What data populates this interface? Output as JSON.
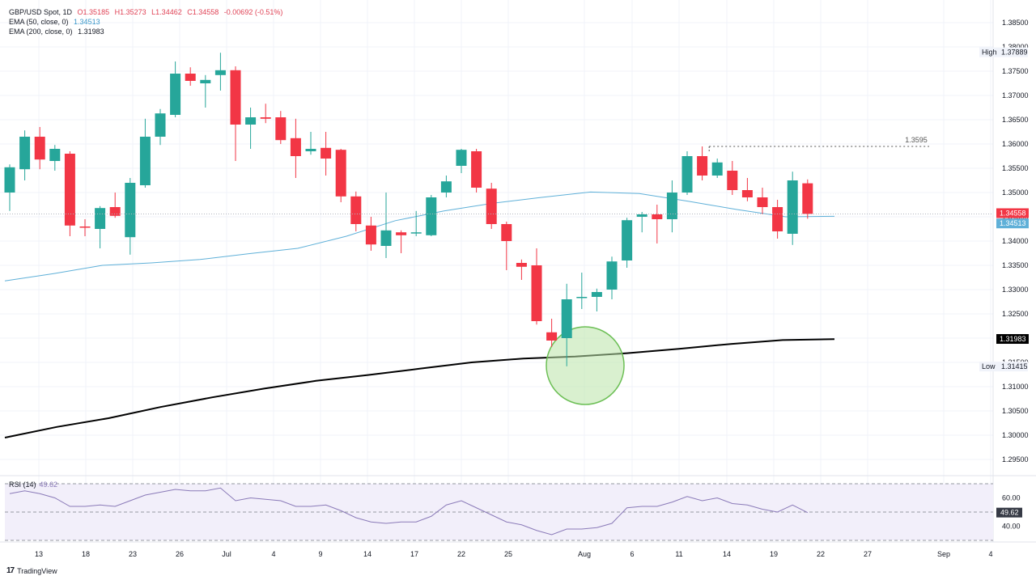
{
  "legend": {
    "symbol": "GBP/USD Spot, 1D",
    "open": "O1.35185",
    "high": "H1.35273",
    "low": "L1.34462",
    "close": "C1.34558",
    "change": "-0.00692 (-0.51%)",
    "ema50_label": "EMA (50, close, 0)",
    "ema50_value": "1.34513",
    "ema200_label": "EMA (200, close, 0)",
    "ema200_value": "1.31983"
  },
  "rsi": {
    "label": "RSI (14)",
    "value": "49.62",
    "levels": [
      "60.00",
      "40.00"
    ]
  },
  "footer": {
    "brand": "TradingView",
    "logo": "17"
  },
  "colors": {
    "up": "#26a69a",
    "down": "#f23645",
    "ema50": "#5fb0d8",
    "ema200": "#000000",
    "rsi_line": "#8a7ab8",
    "rsi_band": "#f2effa",
    "circle_fill": "#b9e3a8",
    "circle_stroke": "#6cbf55"
  },
  "chart_data": {
    "type": "candlestick",
    "title": "GBP/USD Spot, 1D",
    "price_ticks": [
      "1.38500",
      "1.38000",
      "1.37500",
      "1.37000",
      "1.36500",
      "1.36000",
      "1.35500",
      "1.35000",
      "1.34500",
      "1.34000",
      "1.33500",
      "1.33000",
      "1.32500",
      "1.32000",
      "1.31500",
      "1.31000",
      "1.30500",
      "1.30000",
      "1.29500"
    ],
    "date_ticks": [
      "13",
      "18",
      "23",
      "26",
      "Jul",
      "4",
      "9",
      "14",
      "17",
      "22",
      "25",
      "Aug",
      "6",
      "11",
      "14",
      "19",
      "22",
      "27",
      "Sep",
      "4"
    ],
    "ylim": [
      1.292,
      1.388
    ],
    "candles": [
      {
        "o": 1.35,
        "h": 1.3558,
        "l": 1.3462,
        "c": 1.3552
      },
      {
        "o": 1.3548,
        "h": 1.3628,
        "l": 1.3525,
        "c": 1.3615
      },
      {
        "o": 1.3615,
        "h": 1.3635,
        "l": 1.3548,
        "c": 1.3568
      },
      {
        "o": 1.3565,
        "h": 1.3598,
        "l": 1.3545,
        "c": 1.359
      },
      {
        "o": 1.358,
        "h": 1.3585,
        "l": 1.341,
        "c": 1.3432
      },
      {
        "o": 1.343,
        "h": 1.3445,
        "l": 1.341,
        "c": 1.3428
      },
      {
        "o": 1.3425,
        "h": 1.3472,
        "l": 1.3385,
        "c": 1.3468
      },
      {
        "o": 1.347,
        "h": 1.35,
        "l": 1.3448,
        "c": 1.3452
      },
      {
        "o": 1.3408,
        "h": 1.353,
        "l": 1.3372,
        "c": 1.352
      },
      {
        "o": 1.3515,
        "h": 1.3652,
        "l": 1.351,
        "c": 1.3615
      },
      {
        "o": 1.3615,
        "h": 1.3672,
        "l": 1.3598,
        "c": 1.3663
      },
      {
        "o": 1.366,
        "h": 1.377,
        "l": 1.3655,
        "c": 1.3745
      },
      {
        "o": 1.3745,
        "h": 1.3758,
        "l": 1.372,
        "c": 1.373
      },
      {
        "o": 1.3725,
        "h": 1.3742,
        "l": 1.3675,
        "c": 1.3732
      },
      {
        "o": 1.3742,
        "h": 1.3788,
        "l": 1.371,
        "c": 1.3752
      },
      {
        "o": 1.3752,
        "h": 1.376,
        "l": 1.3565,
        "c": 1.364
      },
      {
        "o": 1.364,
        "h": 1.3675,
        "l": 1.359,
        "c": 1.3655
      },
      {
        "o": 1.3655,
        "h": 1.3683,
        "l": 1.3643,
        "c": 1.3652
      },
      {
        "o": 1.3655,
        "h": 1.3668,
        "l": 1.36,
        "c": 1.3608
      },
      {
        "o": 1.3612,
        "h": 1.3652,
        "l": 1.353,
        "c": 1.3575
      },
      {
        "o": 1.3585,
        "h": 1.3625,
        "l": 1.3578,
        "c": 1.359
      },
      {
        "o": 1.3592,
        "h": 1.3625,
        "l": 1.3535,
        "c": 1.357
      },
      {
        "o": 1.3588,
        "h": 1.359,
        "l": 1.348,
        "c": 1.3492
      },
      {
        "o": 1.3492,
        "h": 1.3502,
        "l": 1.342,
        "c": 1.3435
      },
      {
        "o": 1.3432,
        "h": 1.345,
        "l": 1.338,
        "c": 1.3393
      },
      {
        "o": 1.339,
        "h": 1.35,
        "l": 1.3365,
        "c": 1.3422
      },
      {
        "o": 1.3418,
        "h": 1.3422,
        "l": 1.3375,
        "c": 1.3412
      },
      {
        "o": 1.3417,
        "h": 1.3462,
        "l": 1.341,
        "c": 1.3418
      },
      {
        "o": 1.3412,
        "h": 1.3495,
        "l": 1.341,
        "c": 1.349
      },
      {
        "o": 1.35,
        "h": 1.3535,
        "l": 1.349,
        "c": 1.3523
      },
      {
        "o": 1.3555,
        "h": 1.359,
        "l": 1.354,
        "c": 1.3588
      },
      {
        "o": 1.3585,
        "h": 1.359,
        "l": 1.35,
        "c": 1.351
      },
      {
        "o": 1.3508,
        "h": 1.352,
        "l": 1.3425,
        "c": 1.3435
      },
      {
        "o": 1.3435,
        "h": 1.344,
        "l": 1.334,
        "c": 1.34
      },
      {
        "o": 1.3355,
        "h": 1.3362,
        "l": 1.332,
        "c": 1.3347
      },
      {
        "o": 1.335,
        "h": 1.3385,
        "l": 1.3228,
        "c": 1.3235
      },
      {
        "o": 1.3212,
        "h": 1.324,
        "l": 1.3182,
        "c": 1.3195
      },
      {
        "o": 1.32,
        "h": 1.3312,
        "l": 1.3142,
        "c": 1.328
      },
      {
        "o": 1.3283,
        "h": 1.3335,
        "l": 1.326,
        "c": 1.3285
      },
      {
        "o": 1.3285,
        "h": 1.3302,
        "l": 1.3255,
        "c": 1.3295
      },
      {
        "o": 1.33,
        "h": 1.3368,
        "l": 1.328,
        "c": 1.3358
      },
      {
        "o": 1.336,
        "h": 1.3448,
        "l": 1.3345,
        "c": 1.3443
      },
      {
        "o": 1.345,
        "h": 1.346,
        "l": 1.3418,
        "c": 1.3455
      },
      {
        "o": 1.3455,
        "h": 1.3475,
        "l": 1.3395,
        "c": 1.3445
      },
      {
        "o": 1.3445,
        "h": 1.3525,
        "l": 1.3418,
        "c": 1.35
      },
      {
        "o": 1.35,
        "h": 1.3585,
        "l": 1.3495,
        "c": 1.3575
      },
      {
        "o": 1.3575,
        "h": 1.3595,
        "l": 1.3525,
        "c": 1.3535
      },
      {
        "o": 1.3535,
        "h": 1.357,
        "l": 1.353,
        "c": 1.3562
      },
      {
        "o": 1.3545,
        "h": 1.3565,
        "l": 1.3495,
        "c": 1.3505
      },
      {
        "o": 1.3505,
        "h": 1.353,
        "l": 1.3482,
        "c": 1.349
      },
      {
        "o": 1.349,
        "h": 1.351,
        "l": 1.3455,
        "c": 1.347
      },
      {
        "o": 1.347,
        "h": 1.3485,
        "l": 1.3405,
        "c": 1.342
      },
      {
        "o": 1.3415,
        "h": 1.3543,
        "l": 1.3392,
        "c": 1.3525
      },
      {
        "o": 1.3519,
        "h": 1.3527,
        "l": 1.3446,
        "c": 1.3456
      }
    ],
    "ema50": [
      1.3318,
      1.3333,
      1.335,
      1.3355,
      1.3362,
      1.3374,
      1.3385,
      1.341,
      1.3442,
      1.3462,
      1.3478,
      1.349,
      1.3501,
      1.3498,
      1.3482,
      1.3465,
      1.345,
      1.3451
    ],
    "ema200": [
      1.2995,
      1.3017,
      1.3035,
      1.3058,
      1.3078,
      1.3096,
      1.3112,
      1.3124,
      1.3137,
      1.315,
      1.3158,
      1.3162,
      1.3169,
      1.3178,
      1.3188,
      1.3196,
      1.3198
    ],
    "annotations": {
      "high_label": "High",
      "high_value": "1.37889",
      "high_price": 1.37889,
      "low_label": "Low",
      "low_value": "1.31415",
      "low_price": 1.31415,
      "resistance_label": "1.3595",
      "resistance_price": 1.3595,
      "last_price": "1.34558",
      "last_price_value": 1.34558,
      "ema50_tag": "1.34513",
      "ema50_tag_value": 1.34513,
      "ema200_tag": "1.31983",
      "ema200_tag_value": 1.31983
    },
    "rsi_series": [
      63,
      65,
      63,
      60,
      54,
      54,
      55,
      54,
      58,
      62,
      64,
      66,
      65,
      65,
      67,
      58,
      60,
      59,
      58,
      54,
      54,
      55,
      51,
      46,
      43,
      42,
      43,
      43,
      47,
      55,
      58,
      53,
      48,
      43,
      41,
      37,
      34,
      38,
      38,
      39,
      42,
      53,
      54,
      54,
      57,
      61,
      58,
      60,
      56,
      55,
      52,
      50,
      55,
      49.62
    ],
    "rsi_ylim": [
      30,
      70
    ]
  }
}
